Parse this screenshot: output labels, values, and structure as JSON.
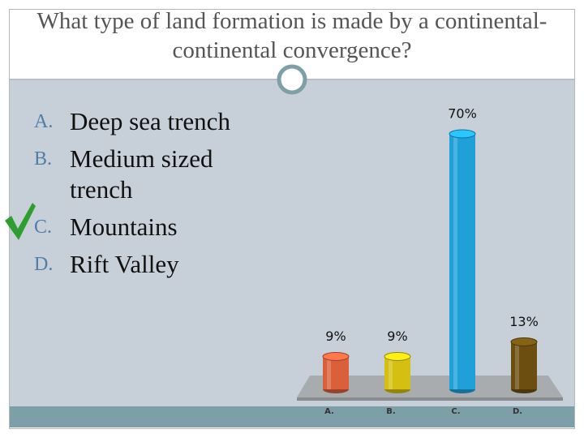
{
  "slide": {
    "title": "What type of land formation is made by a continental-continental convergence?",
    "answers": [
      {
        "letter": "A.",
        "text": "Deep sea trench"
      },
      {
        "letter": "B.",
        "text": "Medium sized trench"
      },
      {
        "letter": "C.",
        "text": "Mountains"
      },
      {
        "letter": "D.",
        "text": "Rift Valley"
      }
    ]
  },
  "chart_data": {
    "type": "bar",
    "categories": [
      "A.",
      "B.",
      "C.",
      "D."
    ],
    "values": [
      9,
      9,
      70,
      13
    ],
    "value_labels": [
      "9%",
      "9%",
      "70%",
      "13%"
    ],
    "colors": [
      "#d9603b",
      "#d4c010",
      "#1fa0d8",
      "#6b4e10"
    ]
  }
}
